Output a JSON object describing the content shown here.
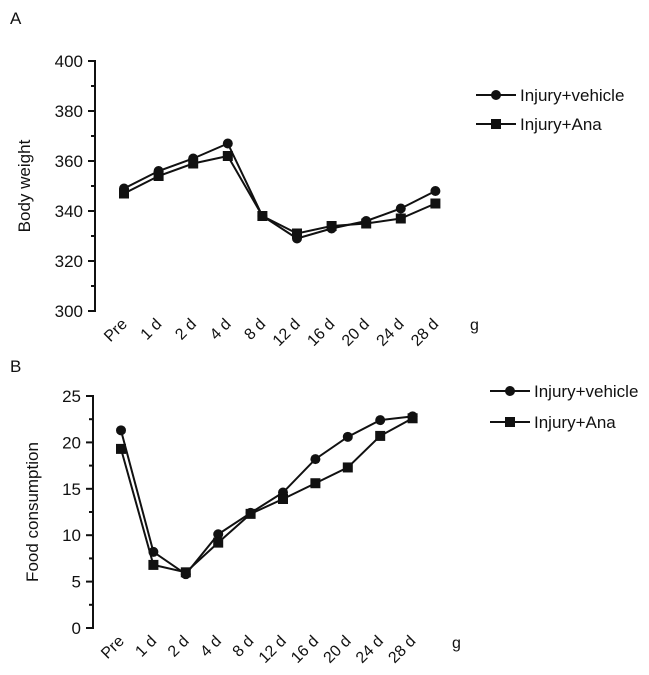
{
  "chart_data": [
    {
      "panel": "A",
      "type": "line",
      "ylabel": "Body weight",
      "xlabel_suffix": "g",
      "categories": [
        "Pre",
        "1 d",
        "2 d",
        "4 d",
        "8 d",
        "12 d",
        "16 d",
        "20 d",
        "24 d",
        "28 d"
      ],
      "ylim": [
        300,
        400
      ],
      "yticks": [
        "400",
        "380",
        "360",
        "340",
        "320",
        "300"
      ],
      "grid": false,
      "legend_position": "right",
      "series": [
        {
          "name": "Injury+vehicle",
          "marker": "circle",
          "values": [
            349,
            356,
            361,
            367,
            338,
            329,
            333,
            336,
            341,
            348
          ]
        },
        {
          "name": "Injury+Ana",
          "marker": "square",
          "values": [
            347,
            354,
            359,
            362,
            338,
            331,
            334,
            335,
            337,
            343
          ]
        }
      ]
    },
    {
      "panel": "B",
      "type": "line",
      "ylabel": "Food  consumption",
      "xlabel_suffix": "g",
      "categories": [
        "Pre",
        "1 d",
        "2 d",
        "4 d",
        "8 d",
        "12 d",
        "16 d",
        "20 d",
        "24 d",
        "28 d"
      ],
      "ylim": [
        0,
        25
      ],
      "yticks": [
        "25",
        "20",
        "15",
        "10",
        "5",
        "0"
      ],
      "grid": false,
      "legend_position": "right",
      "series": [
        {
          "name": "Injury+vehicle",
          "marker": "circle",
          "values": [
            21.3,
            8.2,
            5.8,
            10.1,
            12.4,
            14.6,
            18.2,
            20.6,
            22.4,
            22.8
          ]
        },
        {
          "name": "Injury+Ana",
          "marker": "square",
          "values": [
            19.3,
            6.8,
            6.0,
            9.2,
            12.3,
            13.9,
            15.6,
            17.3,
            20.7,
            22.6
          ]
        }
      ]
    }
  ]
}
